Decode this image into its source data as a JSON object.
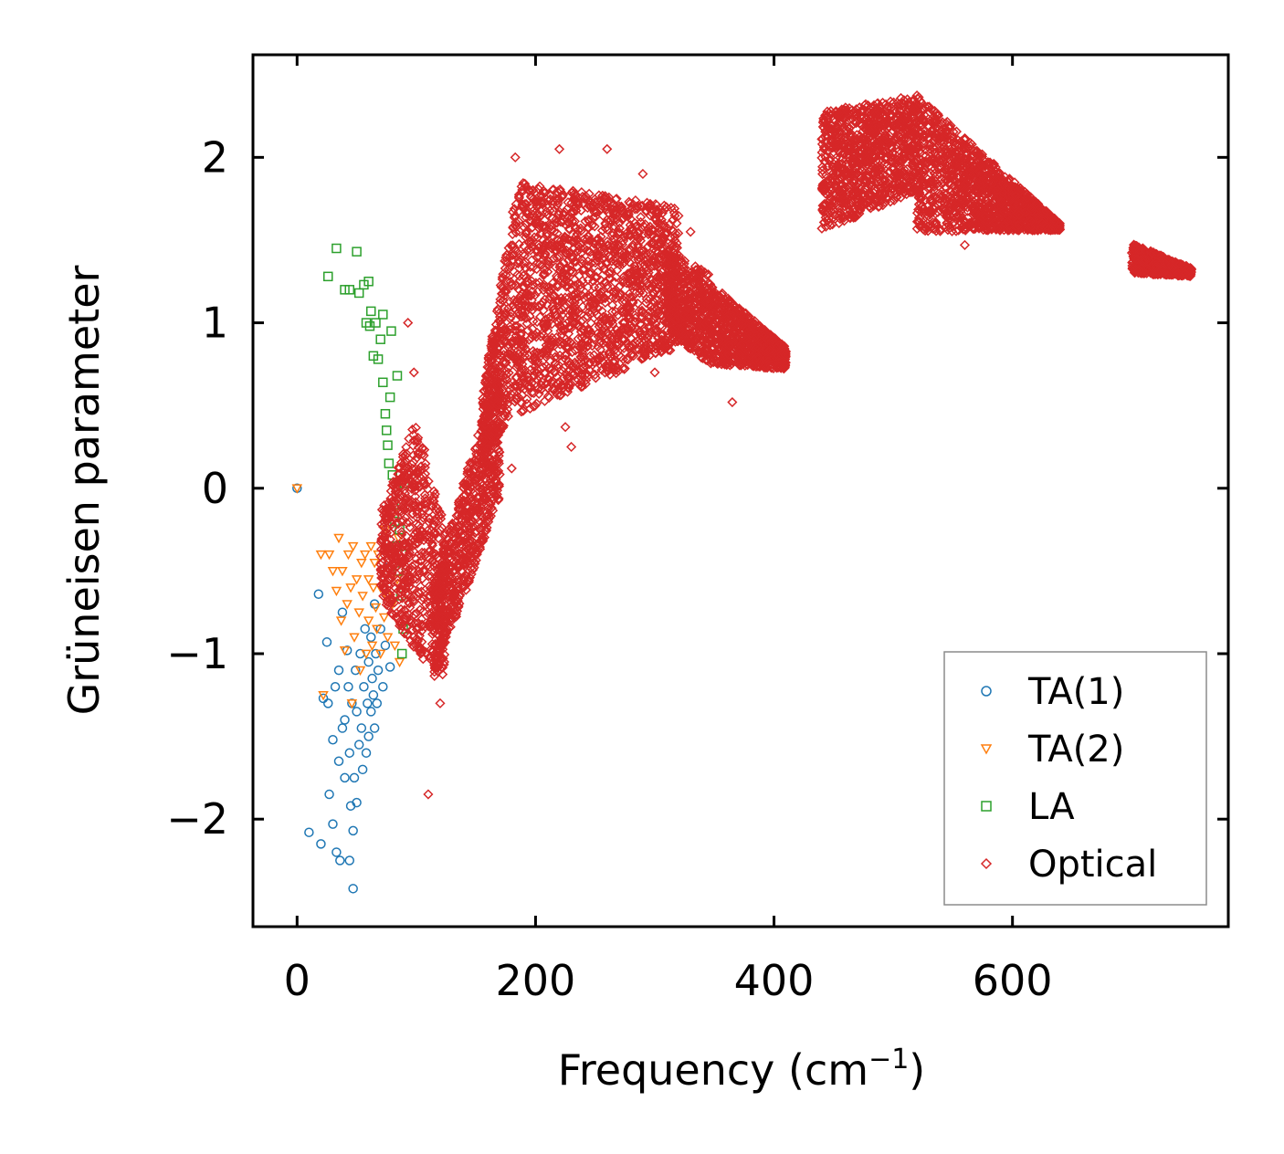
{
  "chart_data": {
    "type": "scatter",
    "title": "",
    "xlabel": "Frequency (cm",
    "xlabel_sup": "−1",
    "xlabel_end": ")",
    "ylabel": "Grüneisen parameter",
    "xlim": [
      -37,
      781
    ],
    "ylim": [
      -2.65,
      2.62
    ],
    "x_ticks": [
      0,
      200,
      400,
      600
    ],
    "x_tick_labels": [
      "0",
      "200",
      "400",
      "600"
    ],
    "y_ticks": [
      -2,
      -1,
      0,
      1,
      2
    ],
    "y_tick_labels": [
      "−2",
      "−1",
      "0",
      "1",
      "2"
    ],
    "grid": false,
    "legend_position": "bottom-right",
    "series": [
      {
        "name": "TA(1)",
        "marker": "circle",
        "color": "#1f77b4",
        "points": [
          [
            0,
            0
          ],
          [
            10,
            -2.08
          ],
          [
            18,
            -0.64
          ],
          [
            20,
            -2.15
          ],
          [
            22,
            -1.27
          ],
          [
            25,
            -0.93
          ],
          [
            26,
            -1.3
          ],
          [
            27,
            -1.85
          ],
          [
            30,
            -1.52
          ],
          [
            30,
            -2.03
          ],
          [
            32,
            -1.2
          ],
          [
            33,
            -2.2
          ],
          [
            35,
            -1.1
          ],
          [
            35,
            -1.65
          ],
          [
            36,
            -2.25
          ],
          [
            38,
            -1.45
          ],
          [
            38,
            -0.75
          ],
          [
            40,
            -1.75
          ],
          [
            40,
            -1.4
          ],
          [
            42,
            -0.98
          ],
          [
            43,
            -1.2
          ],
          [
            44,
            -1.6
          ],
          [
            44,
            -2.25
          ],
          [
            45,
            -1.92
          ],
          [
            46,
            -1.3
          ],
          [
            47,
            -2.07
          ],
          [
            47,
            -2.42
          ],
          [
            48,
            -1.75
          ],
          [
            49,
            -1.1
          ],
          [
            50,
            -1.35
          ],
          [
            50,
            -1.9
          ],
          [
            52,
            -1.55
          ],
          [
            53,
            -1.0
          ],
          [
            54,
            -1.45
          ],
          [
            55,
            -1.7
          ],
          [
            56,
            -1.2
          ],
          [
            57,
            -0.85
          ],
          [
            58,
            -1.6
          ],
          [
            59,
            -1.3
          ],
          [
            60,
            -1.05
          ],
          [
            60,
            -1.5
          ],
          [
            62,
            -0.9
          ],
          [
            62,
            -1.35
          ],
          [
            63,
            -1.15
          ],
          [
            64,
            -1.25
          ],
          [
            65,
            -0.7
          ],
          [
            65,
            -1.45
          ],
          [
            66,
            -1.0
          ],
          [
            67,
            -1.3
          ],
          [
            68,
            -1.1
          ],
          [
            70,
            -0.85
          ],
          [
            72,
            -1.2
          ],
          [
            74,
            -0.95
          ],
          [
            76,
            -0.48
          ],
          [
            78,
            -1.08
          ]
        ]
      },
      {
        "name": "TA(2)",
        "marker": "triangle-down",
        "color": "#ff7f0e",
        "points": [
          [
            0,
            0
          ],
          [
            20,
            -0.4
          ],
          [
            22,
            -1.25
          ],
          [
            27,
            -0.4
          ],
          [
            30,
            -0.5
          ],
          [
            33,
            -0.62
          ],
          [
            35,
            -0.3
          ],
          [
            37,
            -0.8
          ],
          [
            38,
            -0.5
          ],
          [
            40,
            -0.98
          ],
          [
            42,
            -0.7
          ],
          [
            43,
            -0.4
          ],
          [
            45,
            -0.6
          ],
          [
            46,
            -1.3
          ],
          [
            47,
            -0.35
          ],
          [
            48,
            -0.9
          ],
          [
            50,
            -0.55
          ],
          [
            52,
            -0.75
          ],
          [
            53,
            -1.1
          ],
          [
            54,
            -0.45
          ],
          [
            55,
            -0.65
          ],
          [
            57,
            -0.4
          ],
          [
            58,
            -1.0
          ],
          [
            60,
            -0.55
          ],
          [
            60,
            -0.8
          ],
          [
            62,
            -0.35
          ],
          [
            63,
            -0.95
          ],
          [
            64,
            -0.6
          ],
          [
            65,
            -0.45
          ],
          [
            66,
            -0.72
          ],
          [
            67,
            -0.85
          ],
          [
            68,
            -0.4
          ],
          [
            70,
            -0.6
          ],
          [
            70,
            -1.0
          ],
          [
            72,
            -0.5
          ],
          [
            73,
            -0.78
          ],
          [
            74,
            -0.25
          ],
          [
            75,
            -0.65
          ],
          [
            76,
            -0.9
          ],
          [
            78,
            -0.4
          ],
          [
            80,
            -0.7
          ],
          [
            80,
            -0.15
          ],
          [
            82,
            -0.95
          ],
          [
            84,
            -0.55
          ],
          [
            85,
            -0.3
          ],
          [
            86,
            -1.05
          ]
        ]
      },
      {
        "name": "LA",
        "marker": "square",
        "color": "#2ca02c",
        "points": [
          [
            26,
            1.28
          ],
          [
            33,
            1.45
          ],
          [
            40,
            1.2
          ],
          [
            44,
            1.2
          ],
          [
            50,
            1.43
          ],
          [
            52,
            1.18
          ],
          [
            56,
            1.23
          ],
          [
            58,
            1.0
          ],
          [
            60,
            1.25
          ],
          [
            61,
            0.98
          ],
          [
            62,
            1.07
          ],
          [
            64,
            0.8
          ],
          [
            66,
            1.0
          ],
          [
            68,
            0.78
          ],
          [
            70,
            0.9
          ],
          [
            72,
            1.05
          ],
          [
            72,
            0.64
          ],
          [
            74,
            0.45
          ],
          [
            75,
            0.35
          ],
          [
            76,
            0.26
          ],
          [
            77,
            0.15
          ],
          [
            78,
            0.55
          ],
          [
            79,
            0.95
          ],
          [
            80,
            0.08
          ],
          [
            81,
            -0.1
          ],
          [
            82,
            -0.2
          ],
          [
            83,
            -0.35
          ],
          [
            84,
            0.68
          ],
          [
            85,
            -0.5
          ],
          [
            86,
            -0.25
          ],
          [
            87,
            -0.65
          ],
          [
            88,
            -0.4
          ],
          [
            88,
            -1.0
          ],
          [
            89,
            -0.85
          ],
          [
            90,
            0.03
          ]
        ]
      },
      {
        "name": "Optical",
        "marker": "diamond",
        "color": "#d62728",
        "bands": [
          {
            "x": [
              70,
              100
            ],
            "y_lo": [
              -0.65,
              -1.0
            ],
            "y_hi": [
              -0.15,
              0.42
            ]
          },
          {
            "x": [
              100,
              125
            ],
            "y_lo": [
              -1.0,
              -1.15
            ],
            "y_hi": [
              0.42,
              -0.25
            ]
          },
          {
            "x": [
              115,
              170
            ],
            "y_lo": [
              -1.15,
              -0.05
            ],
            "y_hi": [
              -0.55,
              0.75
            ]
          },
          {
            "x": [
              155,
              185
            ],
            "y_lo": [
              0.1,
              0.55
            ],
            "y_hi": [
              0.55,
              1.85
            ]
          },
          {
            "x": [
              185,
              320
            ],
            "y_lo": [
              0.45,
              0.85
            ],
            "y_hi": [
              1.85,
              1.7
            ]
          },
          {
            "x": [
              310,
              345
            ],
            "y_lo": [
              0.95,
              0.75
            ],
            "y_hi": [
              1.45,
              1.3
            ]
          },
          {
            "x": [
              345,
              410
            ],
            "y_lo": [
              0.75,
              0.72
            ],
            "y_hi": [
              1.25,
              0.85
            ]
          },
          {
            "x": [
              440,
              520
            ],
            "y_lo": [
              1.55,
              1.8
            ],
            "y_hi": [
              2.28,
              2.38
            ]
          },
          {
            "x": [
              520,
              640
            ],
            "y_lo": [
              1.55,
              1.56
            ],
            "y_hi": [
              2.38,
              1.6
            ]
          },
          {
            "x": [
              700,
              750
            ],
            "y_lo": [
              1.3,
              1.28
            ],
            "y_hi": [
              1.48,
              1.33
            ]
          }
        ],
        "outliers": [
          [
            93,
            1.0
          ],
          [
            98,
            0.7
          ],
          [
            110,
            -1.85
          ],
          [
            120,
            -1.3
          ],
          [
            180,
            0.12
          ],
          [
            183,
            2.0
          ],
          [
            220,
            2.05
          ],
          [
            225,
            0.37
          ],
          [
            230,
            0.25
          ],
          [
            260,
            2.05
          ],
          [
            290,
            1.9
          ],
          [
            300,
            0.7
          ],
          [
            330,
            1.55
          ],
          [
            365,
            0.52
          ],
          [
            470,
            1.65
          ],
          [
            560,
            1.47
          ],
          [
            245,
            1.78
          ]
        ]
      }
    ]
  }
}
